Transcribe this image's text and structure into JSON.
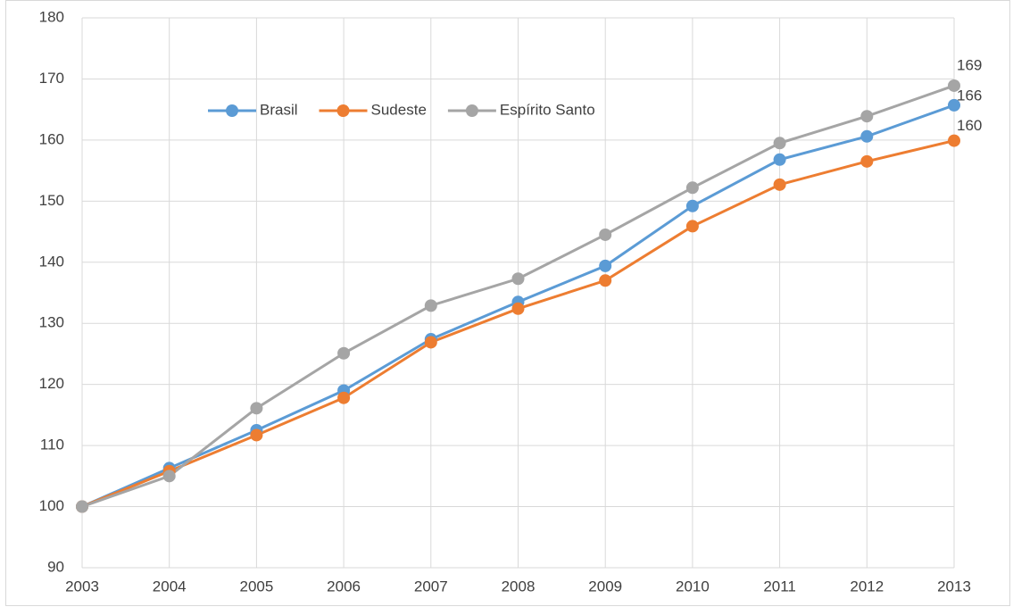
{
  "chart_data": {
    "type": "line",
    "categories": [
      "2003",
      "2004",
      "2005",
      "2006",
      "2007",
      "2008",
      "2009",
      "2010",
      "2011",
      "2012",
      "2013"
    ],
    "series": [
      {
        "name": "Brasil",
        "color": "#5b9bd5",
        "values": [
          100,
          106.3,
          112.5,
          119,
          127.4,
          133.5,
          139.4,
          149.2,
          156.8,
          160.6,
          165.7
        ],
        "value_labels": [
          null,
          null,
          null,
          null,
          null,
          null,
          null,
          null,
          null,
          null,
          "166"
        ]
      },
      {
        "name": "Sudeste",
        "color": "#ed7d31",
        "values": [
          100,
          105.8,
          111.7,
          117.8,
          126.9,
          132.4,
          137,
          145.9,
          152.7,
          156.5,
          159.9
        ],
        "value_labels": [
          null,
          null,
          null,
          null,
          null,
          null,
          null,
          null,
          null,
          null,
          "160"
        ]
      },
      {
        "name": "Espírito Santo",
        "color": "#a5a5a5",
        "values": [
          100,
          105,
          116.1,
          125.1,
          132.9,
          137.3,
          144.5,
          152.2,
          159.5,
          163.9,
          168.9
        ],
        "value_labels": [
          null,
          null,
          null,
          null,
          null,
          null,
          null,
          null,
          null,
          null,
          "169"
        ]
      }
    ],
    "ylim": [
      90,
      180
    ],
    "yticks": [
      90,
      100,
      110,
      120,
      130,
      140,
      150,
      160,
      170,
      180
    ],
    "grid": true,
    "legend": "top"
  }
}
